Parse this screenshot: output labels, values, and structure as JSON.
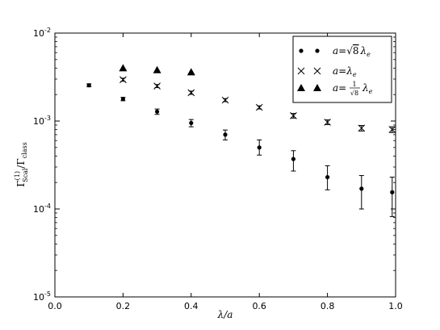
{
  "chart_data": {
    "type": "scatter",
    "xlabel": "λ/a",
    "ylabel_main": "Γ",
    "ylabel_sup": "(1)",
    "ylabel_sub": "Scal",
    "ylabel_den": "/Γ",
    "ylabel_den_sub": "class",
    "xlim": [
      0.0,
      1.0
    ],
    "ylim": [
      1e-05,
      0.01
    ],
    "yscale": "log",
    "grid": false,
    "legend_position": "top-right",
    "x_ticks": [
      "0.0",
      "0.2",
      "0.4",
      "0.6",
      "0.8",
      "1.0"
    ],
    "y_ticks": [
      {
        "base": "10",
        "exp": "-5"
      },
      {
        "base": "10",
        "exp": "-4"
      },
      {
        "base": "10",
        "exp": "-3"
      },
      {
        "base": "10",
        "exp": "-2"
      }
    ],
    "series": [
      {
        "name": "a=√8 λe",
        "legend": {
          "lhs": "a",
          "eq": "=",
          "sqrt": "√",
          "rad": "8",
          "lam": "λ",
          "sub": "e"
        },
        "marker": "dot",
        "points": [
          {
            "x": 0.1,
            "y": 0.00255,
            "ylo": 0.00245,
            "yhi": 0.00265
          },
          {
            "x": 0.2,
            "y": 0.00178,
            "ylo": 0.0017,
            "yhi": 0.00186
          },
          {
            "x": 0.3,
            "y": 0.00128,
            "ylo": 0.00119,
            "yhi": 0.00137
          },
          {
            "x": 0.4,
            "y": 0.00095,
            "ylo": 0.00086,
            "yhi": 0.00104
          },
          {
            "x": 0.5,
            "y": 0.0007,
            "ylo": 0.00061,
            "yhi": 0.00079
          },
          {
            "x": 0.6,
            "y": 0.0005,
            "ylo": 0.00041,
            "yhi": 0.00061
          },
          {
            "x": 0.7,
            "y": 0.00037,
            "ylo": 0.00027,
            "yhi": 0.00046
          },
          {
            "x": 0.8,
            "y": 0.00023,
            "ylo": 0.000165,
            "yhi": 0.00031
          },
          {
            "x": 0.9,
            "y": 0.00017,
            "ylo": 0.0001,
            "yhi": 0.00024
          },
          {
            "x": 0.99,
            "y": 0.000155,
            "ylo": 8.2e-05,
            "yhi": 0.00023
          }
        ]
      },
      {
        "name": "a=λe",
        "legend": {
          "lhs": "a",
          "eq": "=",
          "lam": "λ",
          "sub": "e"
        },
        "marker": "x",
        "points": [
          {
            "x": 0.2,
            "y": 0.00295,
            "ylo": 0.00283,
            "yhi": 0.00307
          },
          {
            "x": 0.3,
            "y": 0.0025,
            "ylo": 0.0024,
            "yhi": 0.0026
          },
          {
            "x": 0.4,
            "y": 0.0021,
            "ylo": 0.00201,
            "yhi": 0.00219
          },
          {
            "x": 0.5,
            "y": 0.00173,
            "ylo": 0.00166,
            "yhi": 0.0018
          },
          {
            "x": 0.6,
            "y": 0.00143,
            "ylo": 0.00137,
            "yhi": 0.00149
          },
          {
            "x": 0.7,
            "y": 0.00115,
            "ylo": 0.00108,
            "yhi": 0.00122
          },
          {
            "x": 0.8,
            "y": 0.00097,
            "ylo": 0.00091,
            "yhi": 0.00103
          },
          {
            "x": 0.9,
            "y": 0.00083,
            "ylo": 0.00077,
            "yhi": 0.00089
          },
          {
            "x": 0.99,
            "y": 0.0008,
            "ylo": 0.00074,
            "yhi": 0.00086
          }
        ]
      },
      {
        "name": "a=1/√8 λe",
        "legend": {
          "lhs": "a",
          "eq": "=",
          "num": "1",
          "den": "√8",
          "lam": "λ",
          "sub": "e"
        },
        "marker": "triangle",
        "points": [
          {
            "x": 0.2,
            "y": 0.004
          },
          {
            "x": 0.3,
            "y": 0.0038
          },
          {
            "x": 0.4,
            "y": 0.0036
          }
        ]
      }
    ]
  }
}
